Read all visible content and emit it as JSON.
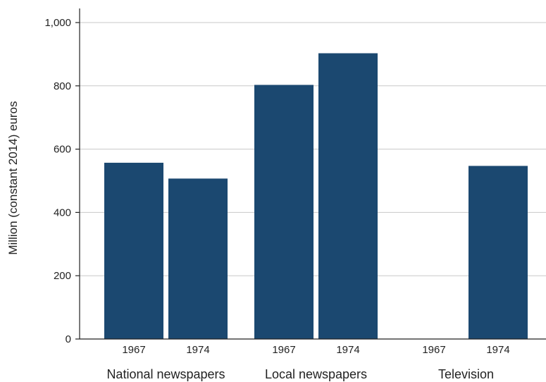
{
  "chart_data": {
    "type": "bar",
    "ylabel": "Million (constant 2014) euros",
    "ylim": [
      0,
      1000
    ],
    "y_ticks": [
      {
        "value": 0,
        "label": "0"
      },
      {
        "value": 200,
        "label": "200"
      },
      {
        "value": 400,
        "label": "400"
      },
      {
        "value": 600,
        "label": "600"
      },
      {
        "value": 800,
        "label": "800"
      },
      {
        "value": 1000,
        "label": "1,000"
      }
    ],
    "grid": true,
    "groups": [
      {
        "label": "National newspapers",
        "bars": [
          {
            "category": "1967",
            "value": 557
          },
          {
            "category": "1974",
            "value": 507
          }
        ]
      },
      {
        "label": "Local newspapers",
        "bars": [
          {
            "category": "1967",
            "value": 803
          },
          {
            "category": "1974",
            "value": 903
          }
        ]
      },
      {
        "label": "Television",
        "bars": [
          {
            "category": "1967",
            "value": null
          },
          {
            "category": "1974",
            "value": 547
          }
        ]
      }
    ],
    "colors": {
      "bar": "#1b4870",
      "grid": "#c8c8c8",
      "axis": "#222222"
    }
  }
}
